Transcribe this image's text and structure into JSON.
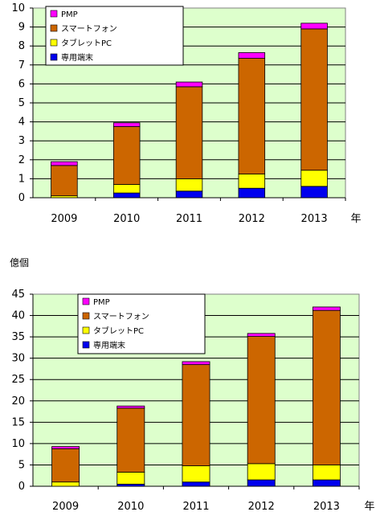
{
  "chart_data": [
    {
      "type": "bar",
      "stacked": true,
      "categories": [
        "2009",
        "2010",
        "2011",
        "2012",
        "2013"
      ],
      "x_unit": "年",
      "y_unit": "",
      "ylim": [
        0,
        10
      ],
      "yticks": [
        0,
        1,
        2,
        3,
        4,
        5,
        6,
        7,
        8,
        9,
        10
      ],
      "grid": true,
      "legend": "top-left",
      "series": [
        {
          "name": "専用端末",
          "color": "#0000ee",
          "values": [
            0.0,
            0.25,
            0.35,
            0.5,
            0.6
          ]
        },
        {
          "name": "タブレットPC",
          "color": "#ffff00",
          "values": [
            0.1,
            0.45,
            0.65,
            0.75,
            0.85
          ]
        },
        {
          "name": "スマートフォン",
          "color": "#cc6600",
          "values": [
            1.6,
            3.05,
            4.85,
            6.1,
            7.45
          ]
        },
        {
          "name": "PMP",
          "color": "#ff00ff",
          "values": [
            0.2,
            0.2,
            0.25,
            0.3,
            0.3
          ]
        }
      ]
    },
    {
      "type": "bar",
      "stacked": true,
      "categories": [
        "2009",
        "2010",
        "2011",
        "2012",
        "2013"
      ],
      "x_unit": "年",
      "y_unit": "億個",
      "ylim": [
        0,
        45
      ],
      "yticks": [
        0,
        5,
        10,
        15,
        20,
        25,
        30,
        35,
        40,
        45
      ],
      "grid": true,
      "legend": "top-left",
      "series": [
        {
          "name": "専用端末",
          "color": "#0000ee",
          "values": [
            0.0,
            0.5,
            1.0,
            1.5,
            1.5
          ]
        },
        {
          "name": "タブレットPC",
          "color": "#ffff00",
          "values": [
            1.0,
            2.8,
            3.8,
            3.8,
            3.5
          ]
        },
        {
          "name": "スマートフォン",
          "color": "#cc6600",
          "values": [
            7.8,
            15.0,
            23.7,
            29.8,
            36.2
          ]
        },
        {
          "name": "PMP",
          "color": "#ff00ff",
          "values": [
            0.5,
            0.5,
            0.7,
            0.7,
            0.8
          ]
        }
      ]
    }
  ],
  "colors": {
    "plot_background": "#ddffcc",
    "axis": "#000000",
    "grid": "#000000"
  }
}
